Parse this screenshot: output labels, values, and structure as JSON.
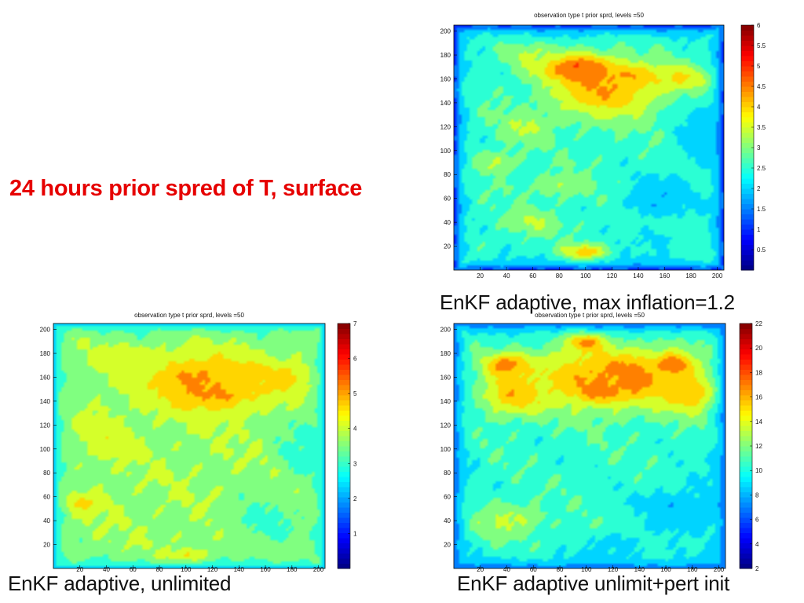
{
  "slide": {
    "title": "24 hours prior spred of T, surface",
    "title_color": "#e60000"
  },
  "chart_data": [
    {
      "type": "heatmap",
      "title": "observation type t prior sprd, levels =50",
      "caption": "EnKF adaptive, max inflation=1.2",
      "xlabel": "",
      "ylabel": "",
      "xlim": [
        0,
        205
      ],
      "ylim": [
        0,
        205
      ],
      "x_ticks": [
        20,
        40,
        60,
        80,
        100,
        120,
        140,
        160,
        180,
        200
      ],
      "y_ticks": [
        20,
        40,
        60,
        80,
        100,
        120,
        140,
        160,
        180,
        200
      ],
      "colorbar": {
        "min": 0,
        "max": 6,
        "ticks": [
          0.5,
          1,
          1.5,
          2,
          2.5,
          3,
          3.5,
          4,
          4.5,
          5,
          5.5,
          6
        ]
      },
      "colormap": "jet",
      "background_level": 2.6,
      "edge_level": 1.0,
      "features": [
        {
          "x": 105,
          "y": 160,
          "rx": 18,
          "ry": 14,
          "v": 5.6
        },
        {
          "x": 90,
          "y": 170,
          "rx": 30,
          "ry": 12,
          "v": 5.0
        },
        {
          "x": 130,
          "y": 162,
          "rx": 22,
          "ry": 9,
          "v": 4.8
        },
        {
          "x": 115,
          "y": 150,
          "rx": 45,
          "ry": 25,
          "v": 4.2
        },
        {
          "x": 170,
          "y": 160,
          "rx": 30,
          "ry": 12,
          "v": 3.9
        },
        {
          "x": 60,
          "y": 180,
          "rx": 25,
          "ry": 10,
          "v": 3.4
        },
        {
          "x": 55,
          "y": 120,
          "rx": 22,
          "ry": 14,
          "v": 3.3
        },
        {
          "x": 30,
          "y": 90,
          "rx": 18,
          "ry": 10,
          "v": 3.4
        },
        {
          "x": 80,
          "y": 70,
          "rx": 25,
          "ry": 10,
          "v": 3.2
        },
        {
          "x": 60,
          "y": 40,
          "rx": 22,
          "ry": 10,
          "v": 3.3
        },
        {
          "x": 100,
          "y": 15,
          "rx": 18,
          "ry": 7,
          "v": 4.5
        },
        {
          "x": 155,
          "y": 60,
          "rx": 30,
          "ry": 20,
          "v": 1.8
        },
        {
          "x": 185,
          "y": 110,
          "rx": 22,
          "ry": 30,
          "v": 2.0
        },
        {
          "x": 150,
          "y": 25,
          "rx": 30,
          "ry": 14,
          "v": 2.2
        }
      ]
    },
    {
      "type": "heatmap",
      "title": "observation type t prior sprd, levels =50",
      "caption": "EnKF adaptive, unlimited",
      "xlabel": "",
      "ylabel": "",
      "xlim": [
        0,
        205
      ],
      "ylim": [
        0,
        205
      ],
      "x_ticks": [
        20,
        40,
        60,
        80,
        100,
        120,
        140,
        160,
        180,
        200
      ],
      "y_ticks": [
        20,
        40,
        60,
        80,
        100,
        120,
        140,
        160,
        180,
        200
      ],
      "colorbar": {
        "min": 0,
        "max": 7,
        "ticks": [
          1,
          2,
          3,
          4,
          5,
          6,
          7
        ]
      },
      "colormap": "jet",
      "background_level": 3.7,
      "edge_level": 2.3,
      "features": [
        {
          "x": 110,
          "y": 155,
          "rx": 22,
          "ry": 16,
          "v": 6.3
        },
        {
          "x": 130,
          "y": 150,
          "rx": 15,
          "ry": 12,
          "v": 5.6
        },
        {
          "x": 120,
          "y": 155,
          "rx": 55,
          "ry": 25,
          "v": 4.9
        },
        {
          "x": 170,
          "y": 160,
          "rx": 30,
          "ry": 12,
          "v": 4.6
        },
        {
          "x": 60,
          "y": 175,
          "rx": 30,
          "ry": 12,
          "v": 4.2
        },
        {
          "x": 40,
          "y": 110,
          "rx": 25,
          "ry": 20,
          "v": 4.1
        },
        {
          "x": 25,
          "y": 55,
          "rx": 18,
          "ry": 8,
          "v": 4.6
        },
        {
          "x": 160,
          "y": 40,
          "rx": 30,
          "ry": 25,
          "v": 3.0
        },
        {
          "x": 185,
          "y": 100,
          "rx": 20,
          "ry": 30,
          "v": 3.0
        },
        {
          "x": 100,
          "y": 10,
          "rx": 18,
          "ry": 6,
          "v": 4.8
        }
      ]
    },
    {
      "type": "heatmap",
      "title": "observation type t prior sprd, levels =50",
      "caption": "EnKF adaptive unlimit+pert init",
      "xlabel": "",
      "ylabel": "",
      "xlim": [
        0,
        205
      ],
      "ylim": [
        0,
        205
      ],
      "x_ticks": [
        20,
        40,
        60,
        80,
        100,
        120,
        140,
        160,
        180,
        200
      ],
      "y_ticks": [
        20,
        40,
        60,
        80,
        100,
        120,
        140,
        160,
        180,
        200
      ],
      "colorbar": {
        "min": 2,
        "max": 22,
        "ticks": [
          2,
          4,
          6,
          8,
          10,
          12,
          14,
          16,
          18,
          20,
          22
        ]
      },
      "colormap": "jet",
      "background_level": 10.5,
      "edge_level": 6.0,
      "features": [
        {
          "x": 130,
          "y": 160,
          "rx": 18,
          "ry": 14,
          "v": 20.5
        },
        {
          "x": 100,
          "y": 190,
          "rx": 15,
          "ry": 8,
          "v": 18.5
        },
        {
          "x": 165,
          "y": 170,
          "rx": 14,
          "ry": 10,
          "v": 19.5
        },
        {
          "x": 110,
          "y": 150,
          "rx": 18,
          "ry": 10,
          "v": 19.0
        },
        {
          "x": 40,
          "y": 170,
          "rx": 18,
          "ry": 10,
          "v": 18.0
        },
        {
          "x": 120,
          "y": 160,
          "rx": 80,
          "ry": 30,
          "v": 16.5
        },
        {
          "x": 45,
          "y": 145,
          "rx": 25,
          "ry": 18,
          "v": 16.0
        },
        {
          "x": 180,
          "y": 145,
          "rx": 20,
          "ry": 15,
          "v": 16.0
        },
        {
          "x": 40,
          "y": 40,
          "rx": 28,
          "ry": 15,
          "v": 13.5
        },
        {
          "x": 170,
          "y": 50,
          "rx": 35,
          "ry": 25,
          "v": 8.5
        },
        {
          "x": 120,
          "y": 20,
          "rx": 25,
          "ry": 12,
          "v": 9.0
        }
      ]
    }
  ]
}
